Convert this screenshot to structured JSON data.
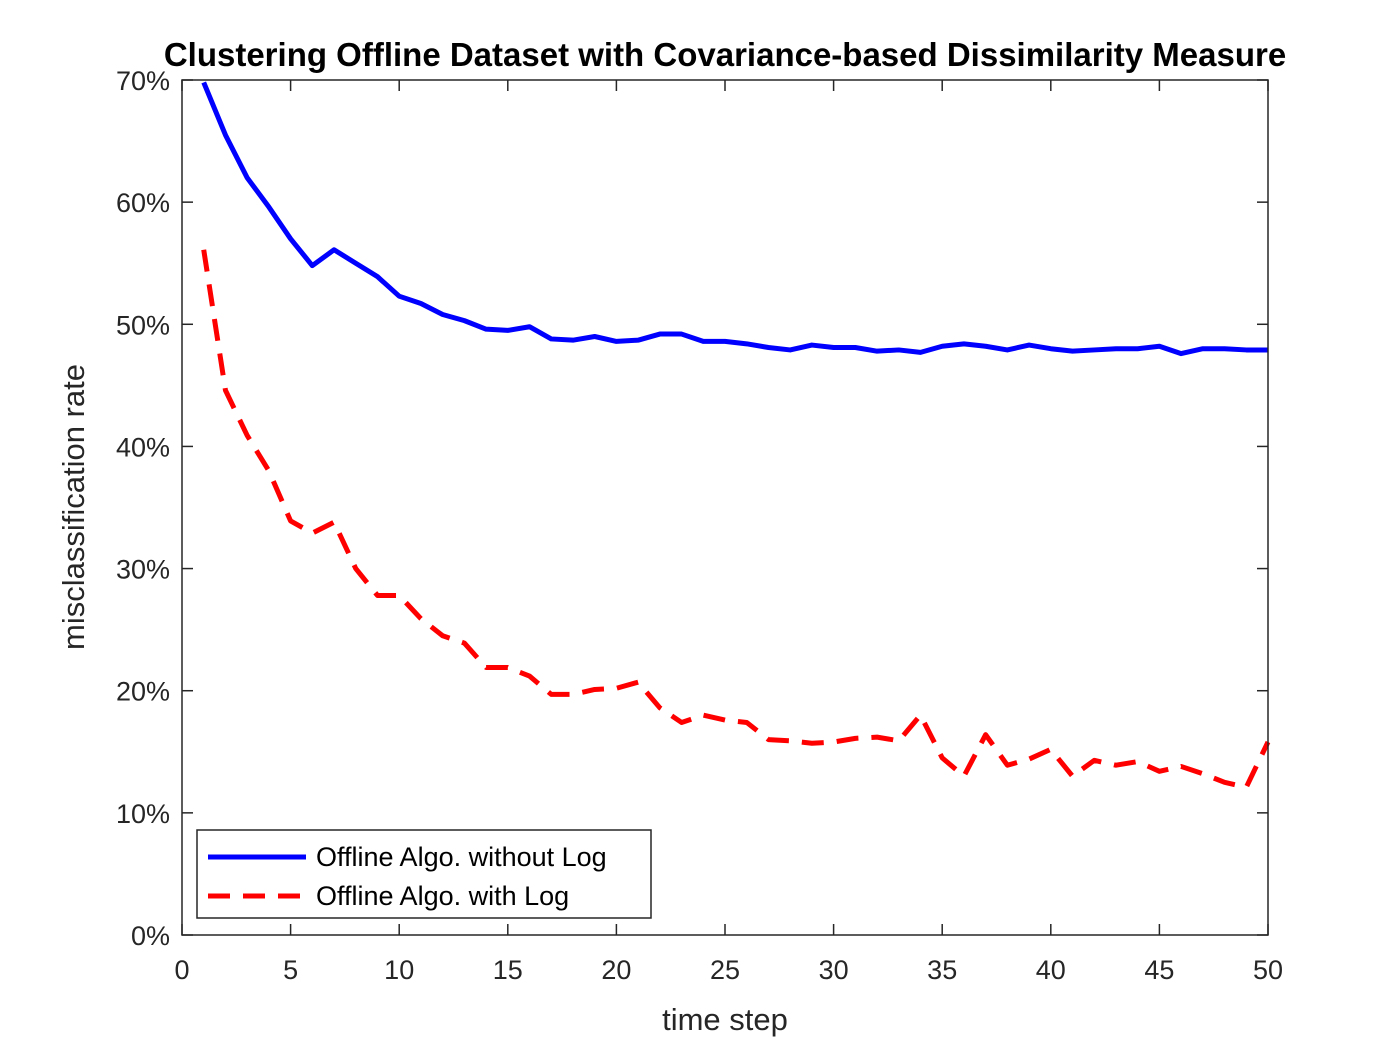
{
  "chart_data": {
    "type": "line",
    "title": "Clustering Offline Dataset with Covariance-based Dissimilarity Measure",
    "xlabel": "time step",
    "ylabel": "misclassification rate",
    "xlim": [
      0,
      50
    ],
    "ylim": [
      0,
      70
    ],
    "xticks": [
      0,
      5,
      10,
      15,
      20,
      25,
      30,
      35,
      40,
      45,
      50
    ],
    "xtick_labels": [
      "0",
      "5",
      "10",
      "15",
      "20",
      "25",
      "30",
      "35",
      "40",
      "45",
      "50"
    ],
    "yticks": [
      0,
      10,
      20,
      30,
      40,
      50,
      60,
      70
    ],
    "ytick_labels": [
      "0%",
      "10%",
      "20%",
      "30%",
      "40%",
      "50%",
      "60%",
      "70%"
    ],
    "grid": false,
    "legend_position": "bottom-left",
    "x": [
      1,
      2,
      3,
      4,
      5,
      6,
      7,
      8,
      9,
      10,
      11,
      12,
      13,
      14,
      15,
      16,
      17,
      18,
      19,
      20,
      21,
      22,
      23,
      24,
      25,
      26,
      27,
      28,
      29,
      30,
      31,
      32,
      33,
      34,
      35,
      36,
      37,
      38,
      39,
      40,
      41,
      42,
      43,
      44,
      45,
      46,
      47,
      48,
      49,
      50
    ],
    "series": [
      {
        "name": "Offline Algo. without Log",
        "color": "#0000ff",
        "style": "solid",
        "values": [
          69.8,
          65.5,
          62.0,
          59.6,
          57.0,
          54.8,
          56.1,
          55.0,
          53.9,
          52.3,
          51.7,
          50.8,
          50.3,
          49.6,
          49.5,
          49.8,
          48.8,
          48.7,
          49.0,
          48.6,
          48.7,
          49.2,
          49.2,
          48.6,
          48.6,
          48.4,
          48.1,
          47.9,
          48.3,
          48.1,
          48.1,
          47.8,
          47.9,
          47.7,
          48.2,
          48.4,
          48.2,
          47.9,
          48.3,
          48.0,
          47.8,
          47.9,
          48.0,
          48.0,
          48.2,
          47.6,
          48.0,
          48.0,
          47.9,
          47.9
        ]
      },
      {
        "name": "Offline Algo. with Log",
        "color": "#ff0000",
        "style": "dashed",
        "values": [
          56.1,
          44.6,
          40.9,
          38.0,
          33.9,
          32.9,
          33.8,
          30.0,
          27.8,
          27.8,
          25.9,
          24.5,
          23.9,
          21.9,
          21.9,
          21.2,
          19.7,
          19.7,
          20.1,
          20.2,
          20.7,
          18.6,
          17.4,
          18.0,
          17.6,
          17.4,
          16.0,
          15.9,
          15.7,
          15.8,
          16.1,
          16.2,
          15.9,
          18.0,
          14.5,
          13.0,
          16.4,
          13.9,
          14.4,
          15.2,
          13.0,
          14.3,
          13.9,
          14.2,
          13.4,
          13.8,
          13.2,
          12.5,
          12.1,
          15.8
        ]
      }
    ]
  }
}
